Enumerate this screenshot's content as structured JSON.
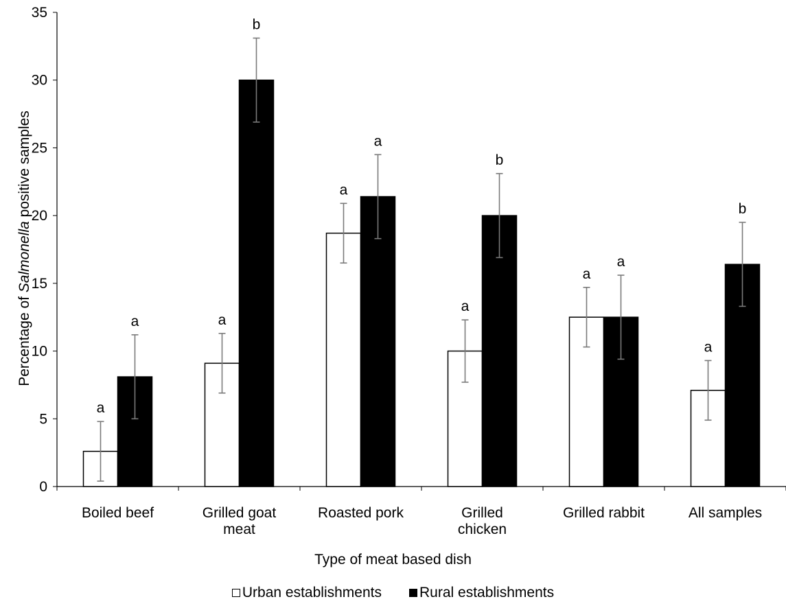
{
  "chart_data": {
    "type": "bar",
    "categories": [
      [
        "Boiled beef"
      ],
      [
        "Grilled goat",
        "meat"
      ],
      [
        "Roasted pork"
      ],
      [
        "Grilled",
        "chicken"
      ],
      [
        "Grilled rabbit"
      ],
      [
        "All samples"
      ]
    ],
    "series": [
      {
        "name": "Urban establishments",
        "color": "#ffffff",
        "values": [
          2.6,
          9.1,
          18.7,
          10.0,
          12.5,
          7.1
        ],
        "error": [
          2.2,
          2.2,
          2.2,
          2.3,
          2.2,
          2.2
        ],
        "letters": [
          "a",
          "a",
          "a",
          "a",
          "a",
          "a"
        ]
      },
      {
        "name": "Rural establishments",
        "color": "#000000",
        "values": [
          8.1,
          30.0,
          21.4,
          20.0,
          12.5,
          16.4
        ],
        "error": [
          3.1,
          3.1,
          3.1,
          3.1,
          3.1,
          3.1
        ],
        "letters": [
          "a",
          "b",
          "a",
          "b",
          "a",
          "b"
        ]
      }
    ],
    "ylim": [
      0,
      35
    ],
    "yticks": [
      0,
      5,
      10,
      15,
      20,
      25,
      30,
      35
    ],
    "ylabel_parts": [
      {
        "text": "Percentage of ",
        "italic": false
      },
      {
        "text": "Salmonella",
        "italic": true
      },
      {
        "text": " positive samples",
        "italic": false
      }
    ],
    "xlabel": "Type of meat based dish",
    "legend_position": "bottom",
    "grid": false
  }
}
